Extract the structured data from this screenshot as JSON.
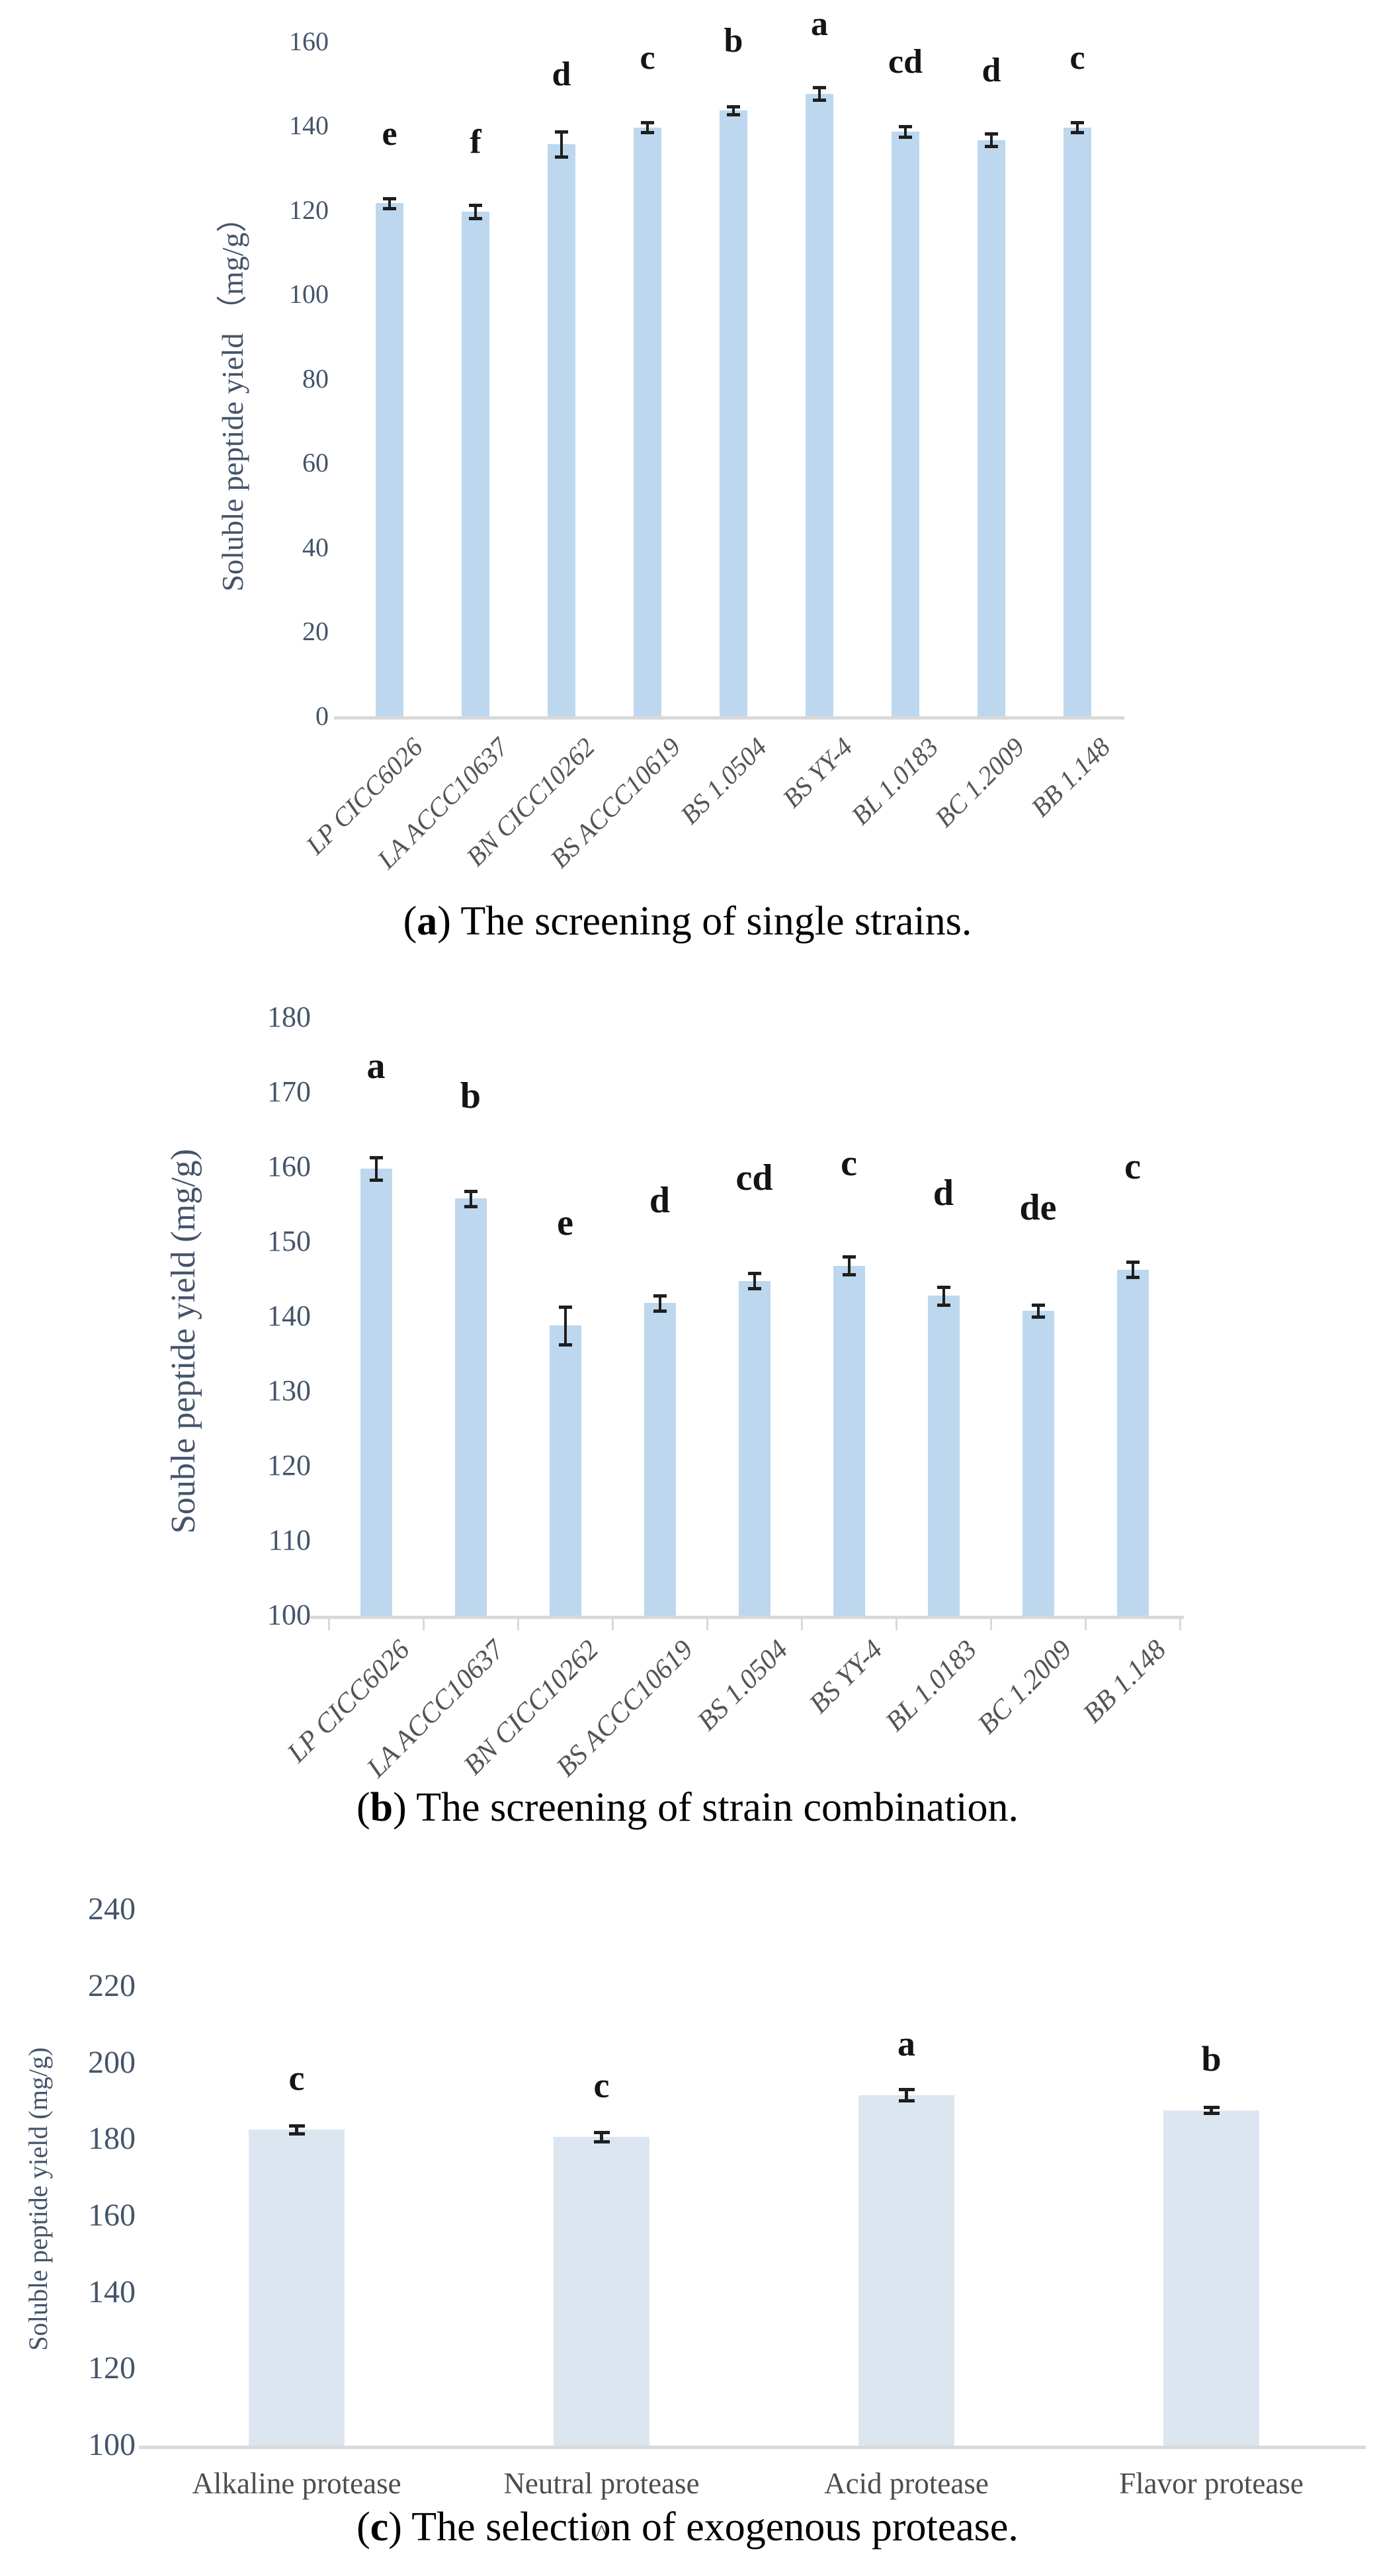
{
  "page": {
    "background": "#ffffff"
  },
  "colors": {
    "bar_light_blue": "#bdd7ee",
    "bar_pale_blue": "#dce6f1",
    "axis_line": "#d9d9d9",
    "tick_text": "#44546a",
    "x_label_text": "#545454",
    "significance_text": "#141414",
    "error_bar": "#1f1f1f",
    "caption_text": "#000000"
  },
  "chart_data": [
    {
      "id": "a",
      "type": "bar",
      "title": "",
      "ylabel": "Soluble peptide yield （mg/g）",
      "xlabel": "",
      "ylim": [
        0,
        160
      ],
      "ytick_step": 20,
      "grid": false,
      "legend": "none",
      "categories": [
        "LP CICC6026",
        "LA ACCC10637",
        "BN CICC10262",
        "BS ACCC10619",
        "BS 1.0504",
        "BS YY-4",
        "BL 1.0183",
        "BC 1.2009",
        "BB 1.148"
      ],
      "values": [
        122,
        120,
        136,
        140,
        144,
        148,
        139,
        137,
        140
      ],
      "errors": [
        1.2,
        1.5,
        3,
        1.2,
        1,
        1.5,
        1.2,
        1.5,
        1.2
      ],
      "sig_letters": [
        "e",
        "f",
        "d",
        "c",
        "b",
        "a",
        "cd",
        "d",
        "c"
      ],
      "bar_color": "#bdd7ee",
      "caption": {
        "open": "(",
        "letter": "a",
        "close": ") ",
        "text": "The screening of single strains."
      }
    },
    {
      "id": "b",
      "type": "bar",
      "title": "",
      "ylabel": "Souble peptide yield (mg/g)",
      "xlabel": "",
      "ylim": [
        100,
        180
      ],
      "ytick_step": 10,
      "grid": false,
      "legend": "none",
      "categories": [
        "LP CICC6026",
        "LA ACCC10637",
        "BN CICC10262",
        "BS ACCC10619",
        "BS 1.0504",
        "BS YY-4",
        "BL 1.0183",
        "BC 1.2009",
        "BB 1.148"
      ],
      "values": [
        160,
        156,
        139,
        142,
        145,
        147,
        143,
        141,
        146.5
      ],
      "errors": [
        1.5,
        1,
        2.5,
        1,
        1,
        1.2,
        1.2,
        0.8,
        1
      ],
      "sig_letters": [
        "a",
        "b",
        "e",
        "d",
        "cd",
        "c",
        "d",
        "de",
        "c"
      ],
      "bar_color": "#bdd7ee",
      "caption": {
        "open": "(",
        "letter": "b",
        "close": ") ",
        "text": "The screening of strain combination."
      }
    },
    {
      "id": "c",
      "type": "bar",
      "title": "",
      "ylabel": "Soluble peptide yield (mg/g)",
      "xlabel": "",
      "ylim": [
        100,
        240
      ],
      "ytick_step": 20,
      "grid": false,
      "legend": "none",
      "categories": [
        "Alkaline protease",
        "Neutral protease",
        "Acid protease",
        "Flavor protease"
      ],
      "values": [
        183,
        181,
        192,
        188
      ],
      "errors": [
        1,
        1.2,
        1.5,
        0.8
      ],
      "sig_letters": [
        "c",
        "c",
        "a",
        "b"
      ],
      "bar_color": "#dce6f1",
      "axis_artifact": "^",
      "caption": {
        "open": "(",
        "letter": "c",
        "close": ") ",
        "text": "The selection of exogenous protease."
      }
    }
  ]
}
